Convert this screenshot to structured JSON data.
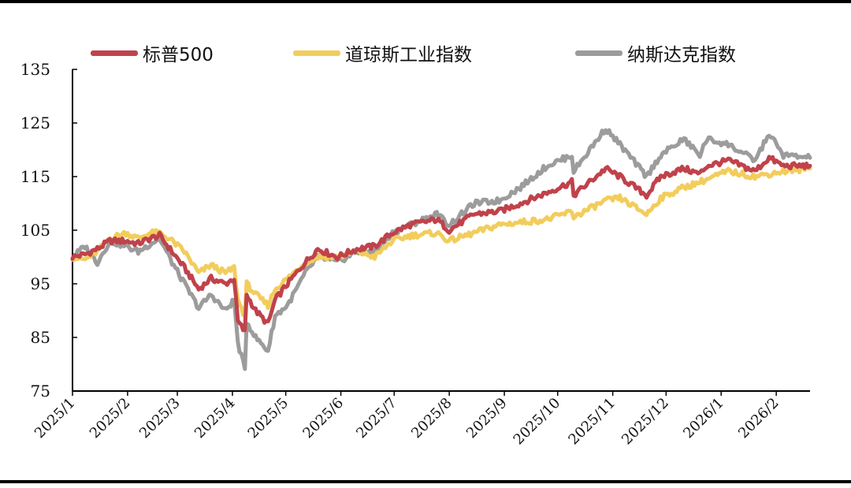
{
  "chart_data": {
    "type": "line",
    "title": "",
    "xlabel": "",
    "ylabel": "",
    "ylim": [
      75,
      135
    ],
    "y_ticks": [
      75,
      85,
      95,
      105,
      115,
      125,
      135
    ],
    "x_ticks": [
      "2025/1",
      "2025/2",
      "2025/3",
      "2025/4",
      "2025/5",
      "2025/6",
      "2025/7",
      "2025/8",
      "2025/9",
      "2025/10",
      "2025/11",
      "2025/12",
      "2026/1",
      "2026/2"
    ],
    "x_range": [
      "2025-01-01",
      "2026-02-20"
    ],
    "legend_position": "top",
    "grid": false,
    "series": [
      {
        "name": "标普500",
        "color": "#c0424b",
        "points": [
          [
            "2025-01-01",
            100
          ],
          [
            "2025-01-08",
            100.5
          ],
          [
            "2025-01-15",
            101.5
          ],
          [
            "2025-01-22",
            103
          ],
          [
            "2025-01-31",
            103
          ],
          [
            "2025-02-07",
            102.5
          ],
          [
            "2025-02-14",
            103.5
          ],
          [
            "2025-02-19",
            104
          ],
          [
            "2025-02-26",
            101
          ],
          [
            "2025-03-05",
            98
          ],
          [
            "2025-03-13",
            94
          ],
          [
            "2025-03-20",
            96
          ],
          [
            "2025-03-28",
            95
          ],
          [
            "2025-04-02",
            96
          ],
          [
            "2025-04-04",
            88
          ],
          [
            "2025-04-08",
            86
          ],
          [
            "2025-04-09",
            93
          ],
          [
            "2025-04-14",
            90
          ],
          [
            "2025-04-21",
            87.5
          ],
          [
            "2025-04-25",
            92
          ],
          [
            "2025-05-02",
            95
          ],
          [
            "2025-05-12",
            99
          ],
          [
            "2025-05-19",
            101.5
          ],
          [
            "2025-05-30",
            100
          ],
          [
            "2025-06-10",
            101.5
          ],
          [
            "2025-06-20",
            102
          ],
          [
            "2025-06-30",
            104.5
          ],
          [
            "2025-07-10",
            106
          ],
          [
            "2025-07-25",
            107
          ],
          [
            "2025-08-01",
            105
          ],
          [
            "2025-08-15",
            108
          ],
          [
            "2025-08-29",
            108.5
          ],
          [
            "2025-09-10",
            110
          ],
          [
            "2025-09-25",
            112
          ],
          [
            "2025-10-09",
            114
          ],
          [
            "2025-10-10",
            111.5
          ],
          [
            "2025-10-28",
            116.5
          ],
          [
            "2025-11-05",
            115
          ],
          [
            "2025-11-20",
            111.5
          ],
          [
            "2025-11-28",
            115
          ],
          [
            "2025-12-11",
            116.5
          ],
          [
            "2025-12-20",
            115.5
          ],
          [
            "2025-12-24",
            117
          ],
          [
            "2026-01-05",
            118
          ],
          [
            "2026-01-20",
            116
          ],
          [
            "2026-01-28",
            118.5
          ],
          [
            "2026-02-05",
            117
          ],
          [
            "2026-02-20",
            117
          ]
        ]
      },
      {
        "name": "道琼斯工业指数",
        "color": "#f2cd5c",
        "points": [
          [
            "2025-01-01",
            100
          ],
          [
            "2025-01-08",
            99.5
          ],
          [
            "2025-01-15",
            101
          ],
          [
            "2025-01-22",
            103.5
          ],
          [
            "2025-01-31",
            104.5
          ],
          [
            "2025-02-07",
            103.5
          ],
          [
            "2025-02-14",
            104.5
          ],
          [
            "2025-02-19",
            104.5
          ],
          [
            "2025-02-26",
            103
          ],
          [
            "2025-03-05",
            101
          ],
          [
            "2025-03-13",
            97
          ],
          [
            "2025-03-20",
            98.5
          ],
          [
            "2025-03-28",
            97
          ],
          [
            "2025-04-02",
            98
          ],
          [
            "2025-04-04",
            92
          ],
          [
            "2025-04-08",
            89
          ],
          [
            "2025-04-09",
            95
          ],
          [
            "2025-04-14",
            93
          ],
          [
            "2025-04-21",
            91
          ],
          [
            "2025-04-25",
            94
          ],
          [
            "2025-05-02",
            96
          ],
          [
            "2025-05-12",
            99
          ],
          [
            "2025-05-19",
            100
          ],
          [
            "2025-05-30",
            100
          ],
          [
            "2025-06-10",
            101
          ],
          [
            "2025-06-20",
            100
          ],
          [
            "2025-06-30",
            103
          ],
          [
            "2025-07-10",
            104
          ],
          [
            "2025-07-25",
            104.5
          ],
          [
            "2025-08-01",
            103
          ],
          [
            "2025-08-15",
            104.5
          ],
          [
            "2025-08-29",
            106
          ],
          [
            "2025-09-10",
            106.5
          ],
          [
            "2025-09-25",
            107
          ],
          [
            "2025-10-09",
            108.5
          ],
          [
            "2025-10-10",
            107.5
          ],
          [
            "2025-10-28",
            110.5
          ],
          [
            "2025-11-05",
            111
          ],
          [
            "2025-11-20",
            108
          ],
          [
            "2025-11-28",
            111
          ],
          [
            "2025-12-11",
            113
          ],
          [
            "2025-12-20",
            114
          ],
          [
            "2025-12-24",
            114.5
          ],
          [
            "2026-01-05",
            116
          ],
          [
            "2026-01-20",
            115
          ],
          [
            "2026-01-28",
            115.5
          ],
          [
            "2026-02-05",
            116
          ],
          [
            "2026-02-20",
            116.5
          ]
        ]
      },
      {
        "name": "纳斯达克指数",
        "color": "#9c9c9c",
        "points": [
          [
            "2025-01-01",
            100
          ],
          [
            "2025-01-08",
            102
          ],
          [
            "2025-01-15",
            99
          ],
          [
            "2025-01-22",
            103
          ],
          [
            "2025-01-31",
            102
          ],
          [
            "2025-02-07",
            101
          ],
          [
            "2025-02-14",
            102.5
          ],
          [
            "2025-02-19",
            103.5
          ],
          [
            "2025-02-26",
            99
          ],
          [
            "2025-03-05",
            95
          ],
          [
            "2025-03-13",
            90.5
          ],
          [
            "2025-03-20",
            93
          ],
          [
            "2025-03-28",
            90
          ],
          [
            "2025-04-02",
            92
          ],
          [
            "2025-04-04",
            84
          ],
          [
            "2025-04-08",
            79
          ],
          [
            "2025-04-09",
            88
          ],
          [
            "2025-04-14",
            85
          ],
          [
            "2025-04-21",
            82.5
          ],
          [
            "2025-04-25",
            89
          ],
          [
            "2025-05-02",
            91
          ],
          [
            "2025-05-12",
            97
          ],
          [
            "2025-05-19",
            100
          ],
          [
            "2025-05-30",
            99
          ],
          [
            "2025-06-10",
            101
          ],
          [
            "2025-06-20",
            101
          ],
          [
            "2025-06-30",
            104.5
          ],
          [
            "2025-07-10",
            106
          ],
          [
            "2025-07-25",
            108
          ],
          [
            "2025-08-01",
            106
          ],
          [
            "2025-08-15",
            110
          ],
          [
            "2025-08-29",
            110.5
          ],
          [
            "2025-09-10",
            113
          ],
          [
            "2025-09-25",
            117
          ],
          [
            "2025-10-09",
            119
          ],
          [
            "2025-10-10",
            116
          ],
          [
            "2025-10-28",
            124
          ],
          [
            "2025-11-05",
            121
          ],
          [
            "2025-11-20",
            115
          ],
          [
            "2025-11-28",
            119
          ],
          [
            "2025-12-11",
            122
          ],
          [
            "2025-12-20",
            119
          ],
          [
            "2025-12-24",
            122
          ],
          [
            "2026-01-05",
            121
          ],
          [
            "2026-01-20",
            118
          ],
          [
            "2026-01-28",
            123
          ],
          [
            "2026-02-05",
            119
          ],
          [
            "2026-02-20",
            118.5
          ]
        ]
      }
    ]
  }
}
